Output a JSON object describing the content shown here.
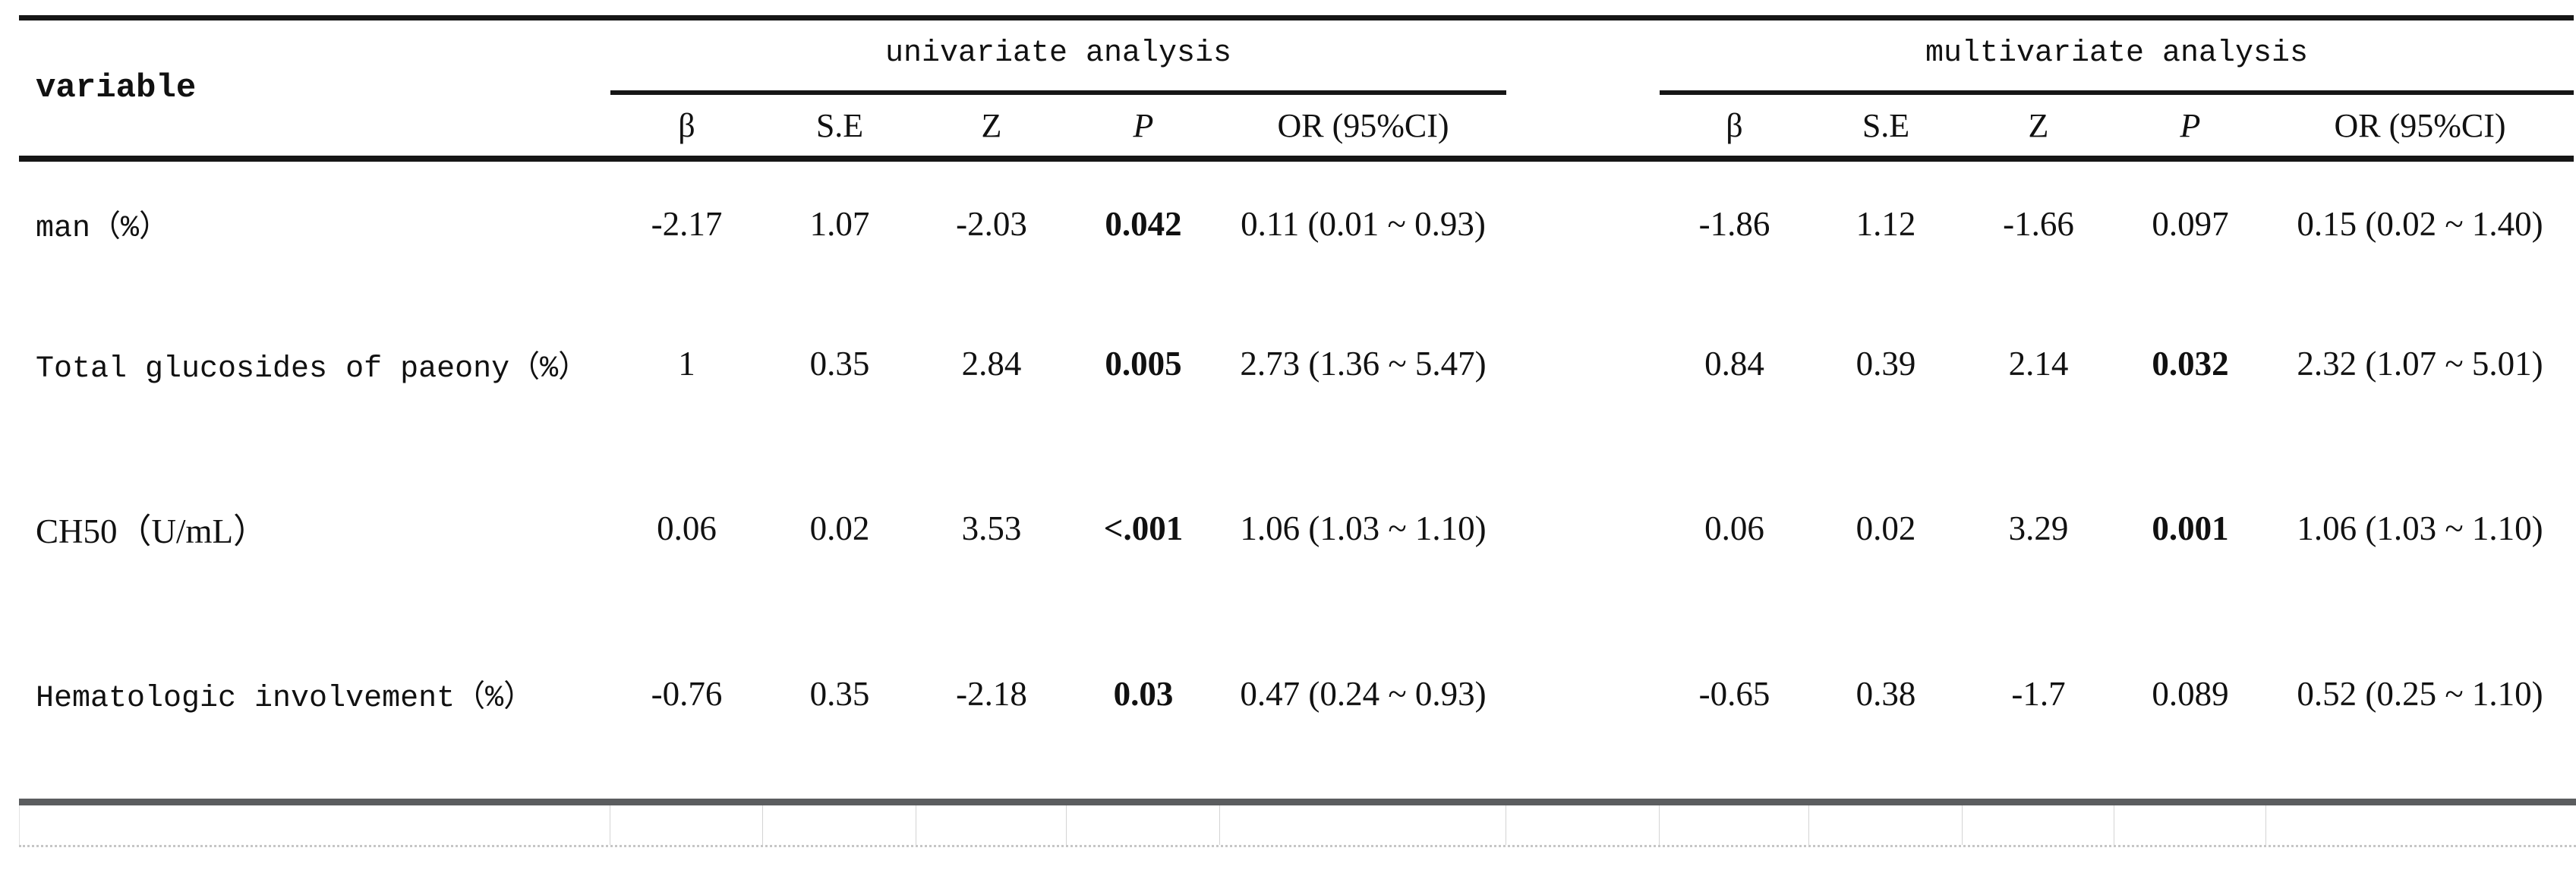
{
  "table": {
    "variable_header": "variable",
    "groups": {
      "univariate": "univariate analysis",
      "multivariate": "multivariate analysis"
    },
    "columns": {
      "beta": "β",
      "se": "S.E",
      "z": "Z",
      "p": "P",
      "or": "OR (95%CI)"
    },
    "rows": [
      {
        "label": "man（%）",
        "u": {
          "beta": "-2.17",
          "se": "1.07",
          "z": "-2.03",
          "p": "0.042",
          "p_bold": true,
          "or": "0.11 (0.01 ~ 0.93)"
        },
        "m": {
          "beta": "-1.86",
          "se": "1.12",
          "z": "-1.66",
          "p": "0.097",
          "p_bold": false,
          "or": "0.15 (0.02 ~ 1.40)"
        }
      },
      {
        "label": "Total glucosides of paeony（%）",
        "u": {
          "beta": "1",
          "se": "0.35",
          "z": "2.84",
          "p": "0.005",
          "p_bold": true,
          "or": "2.73 (1.36 ~ 5.47)"
        },
        "m": {
          "beta": "0.84",
          "se": "0.39",
          "z": "2.14",
          "p": "0.032",
          "p_bold": true,
          "or": "2.32 (1.07 ~ 5.01)"
        }
      },
      {
        "label": "CH50（U/mL）",
        "u": {
          "beta": "0.06",
          "se": "0.02",
          "z": "3.53",
          "p": "<.001",
          "p_bold": true,
          "or": "1.06 (1.03 ~ 1.10)"
        },
        "m": {
          "beta": "0.06",
          "se": "0.02",
          "z": "3.29",
          "p": "0.001",
          "p_bold": true,
          "or": "1.06 (1.03 ~ 1.10)"
        }
      },
      {
        "label": "Hematologic involvement（%）",
        "u": {
          "beta": "-0.76",
          "se": "0.35",
          "z": "-2.18",
          "p": "0.03",
          "p_bold": true,
          "or": "0.47 (0.24 ~ 0.93)"
        },
        "m": {
          "beta": "-0.65",
          "se": "0.38",
          "z": "-1.7",
          "p": "0.089",
          "p_bold": false,
          "or": "0.52 (0.25 ~ 1.10)"
        }
      }
    ],
    "colors": {
      "rule": "#161616",
      "bottom_bar": "#5b5d5f",
      "grid_line": "#d4d4d4"
    }
  }
}
